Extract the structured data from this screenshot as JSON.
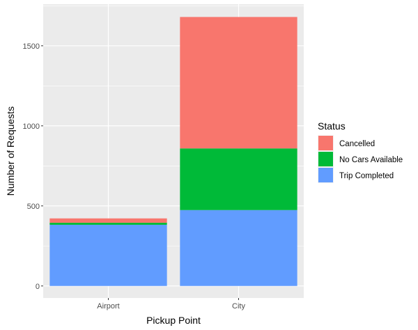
{
  "chart_data": {
    "type": "bar",
    "stacked": true,
    "title": "",
    "xlabel": "Pickup Point",
    "ylabel": "Number of Requests",
    "categories": [
      "Airport",
      "City"
    ],
    "series": [
      {
        "name": "Trip Completed",
        "color": "#619CFF",
        "values": [
          382,
          474
        ]
      },
      {
        "name": "No Cars Available",
        "color": "#00BA38",
        "values": [
          13,
          385
        ]
      },
      {
        "name": "Cancelled",
        "color": "#F8766D",
        "values": [
          27,
          821
        ]
      }
    ],
    "ylim": [
      -75,
      1760
    ],
    "yticks": [
      0,
      500,
      1000,
      1500
    ],
    "ytick_labels": [
      "0",
      "500",
      "1000",
      "1500"
    ],
    "grid": true,
    "panel_background": "#EBEBEB",
    "legend": {
      "title": "Status",
      "placement": "right",
      "entries": [
        "Cancelled",
        "No Cars Available",
        "Trip Completed"
      ]
    }
  }
}
